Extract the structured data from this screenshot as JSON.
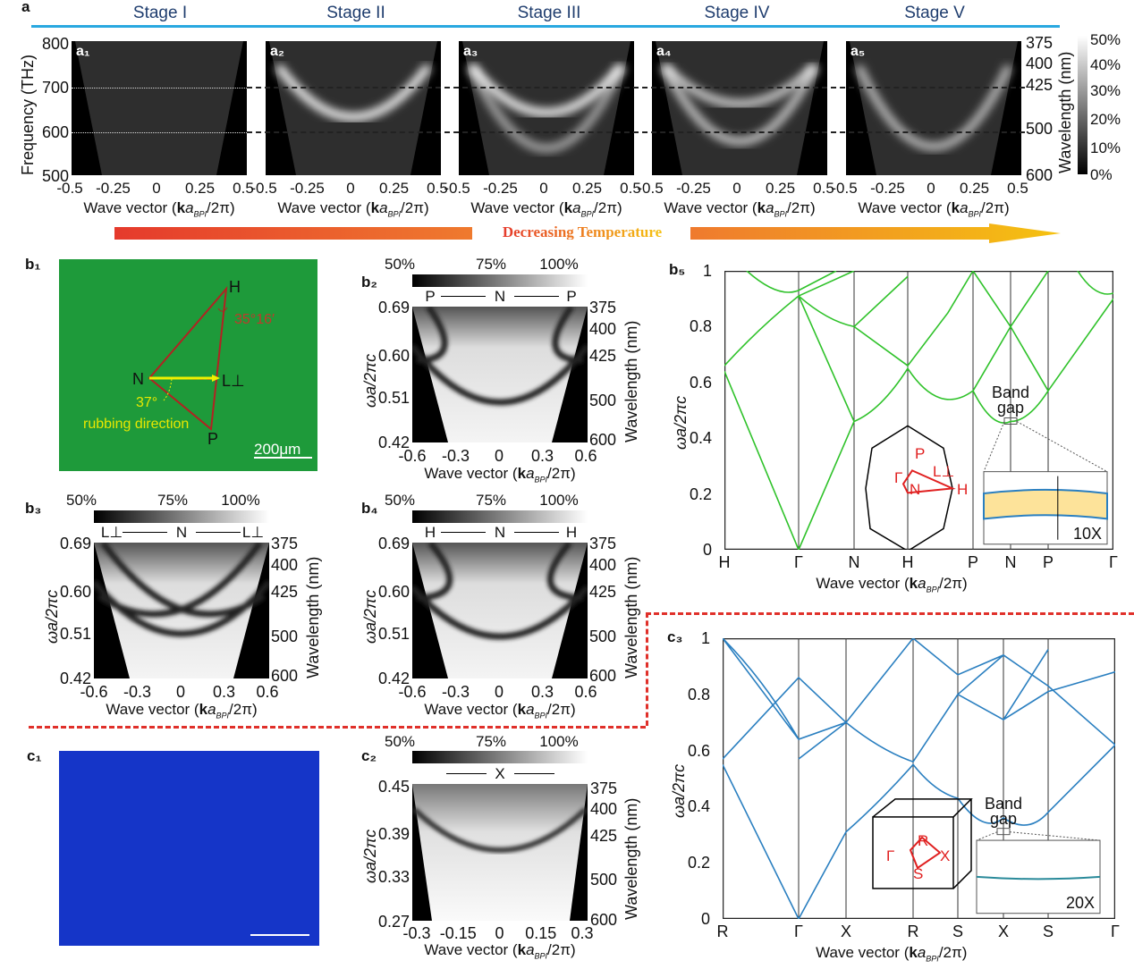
{
  "xlabel": {
    "pre": "Wave vector (",
    "k": "k",
    "a": "a",
    "sub": "BPI",
    "post": "/2π)"
  },
  "panel_a": {
    "label": "a",
    "stages": [
      "Stage I",
      "Stage II",
      "Stage III",
      "Stage IV",
      "Stage V"
    ],
    "subpanels": [
      "a₁",
      "a₂",
      "a₃",
      "a₄",
      "a₅"
    ],
    "y_label": "Frequency (THz)",
    "y_ticks": [
      "800",
      "700",
      "600",
      "500"
    ],
    "x_ticks": [
      "-0.5",
      "-0.25",
      "0",
      "0.25",
      "0.5"
    ],
    "wavelength_ticks": [
      "375",
      "400",
      "425",
      "500",
      "600"
    ],
    "wavelength_label": "Wavelength (nm)",
    "colorbar_ticks": [
      "50%",
      "40%",
      "30%",
      "20%",
      "10%",
      "0%"
    ],
    "stage_line_color": "#29a8e0"
  },
  "temperature_arrow": {
    "label": "Decreasing Temperature",
    "colors": [
      "#e53a2c",
      "#ef7a2e",
      "#f5c211"
    ]
  },
  "panel_b1": {
    "label": "b₁",
    "H": "H",
    "N": "N",
    "L": "L⊥",
    "P": "P",
    "angle_HP": "35°16′",
    "angle_N": "37°",
    "rubbing": "rubbing direction",
    "scale": "200μm",
    "bg_color": "#1e9a3a"
  },
  "panels_b": [
    {
      "label": "b₂",
      "cbar": [
        "50%",
        "75%",
        "100%"
      ],
      "dir": [
        "P",
        "N",
        "P"
      ]
    },
    {
      "label": "b₃",
      "cbar": [
        "50%",
        "75%",
        "100%"
      ],
      "dir": [
        "L⊥",
        "N",
        "L⊥"
      ]
    },
    {
      "label": "b₄",
      "cbar": [
        "50%",
        "75%",
        "100%"
      ],
      "dir": [
        "H",
        "N",
        "H"
      ]
    }
  ],
  "b_axes": {
    "y_label": "ωa/2πc",
    "y_ticks": [
      "0.69",
      "0.60",
      "0.51",
      "0.42"
    ],
    "x_ticks": [
      "-0.6",
      "-0.3",
      "0",
      "0.3",
      "0.6"
    ],
    "wl_ticks": [
      "375",
      "400",
      "425",
      "500",
      "600"
    ],
    "wl_label": "Wavelength (nm)"
  },
  "panel_b5": {
    "label": "b₅",
    "y_label": "ωa/2πc",
    "y_ticks": [
      "0",
      "0.2",
      "0.4",
      "0.6",
      "0.8",
      "1"
    ],
    "x_ticks": [
      "H",
      "Γ",
      "N",
      "H",
      "P",
      "N",
      "P",
      "Γ"
    ],
    "band_gap": [
      "Band",
      "gap"
    ],
    "zoom": "10X",
    "bz": [
      "P",
      "L⊥",
      "Γ",
      "N",
      "H"
    ],
    "color": "#2fc22a"
  },
  "panel_c1": {
    "label": "c₁",
    "bg_color": "#1535c8"
  },
  "panel_c2": {
    "label": "c₂",
    "cbar": [
      "50%",
      "75%",
      "100%"
    ],
    "dir": [
      "",
      "X",
      ""
    ],
    "y_ticks": [
      "0.45",
      "0.39",
      "0.33",
      "0.27"
    ],
    "x_ticks": [
      "-0.3",
      "-0.15",
      "0",
      "0.15",
      "0.3"
    ]
  },
  "panel_c3": {
    "label": "c₃",
    "y_label": "ωa/2πc",
    "y_ticks": [
      "0",
      "0.2",
      "0.4",
      "0.6",
      "0.8",
      "1"
    ],
    "x_ticks": [
      "R",
      "Γ",
      "X",
      "R",
      "S",
      "X",
      "S",
      "Γ"
    ],
    "band_gap": [
      "Band",
      "gap"
    ],
    "zoom": "20X",
    "bz": [
      "R",
      "Γ",
      "X",
      "S"
    ],
    "color": "#2a7fc0"
  }
}
